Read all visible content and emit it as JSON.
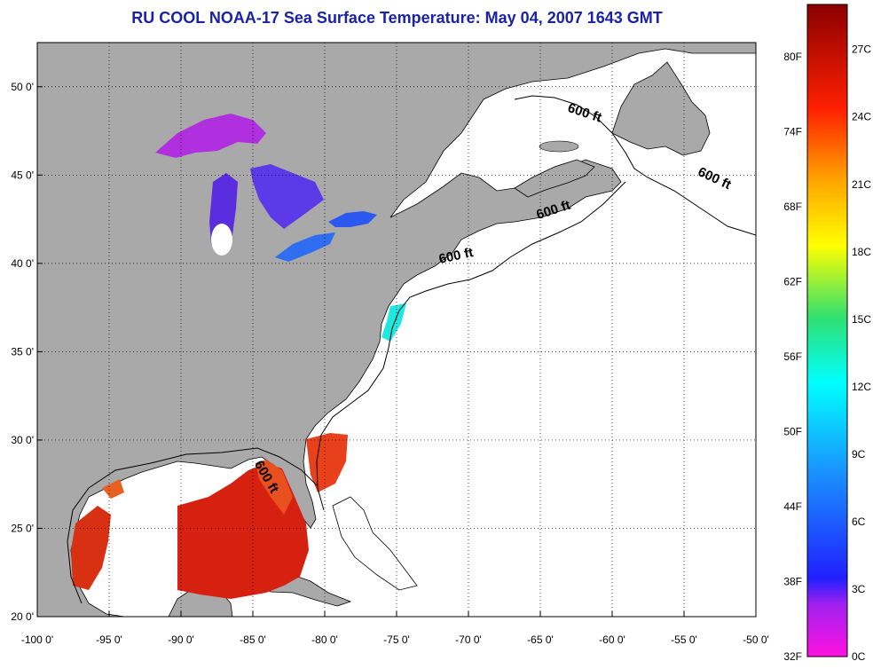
{
  "title": "RU COOL  NOAA-17  Sea Surface Temperature:  May 04, 2007 1643 GMT",
  "map": {
    "lon_range": [
      -100,
      -50
    ],
    "lat_range": [
      20,
      52.5
    ],
    "lon_ticks": [
      {
        "value": -100,
        "label": "-100 0'"
      },
      {
        "value": -95,
        "label": "-95 0'"
      },
      {
        "value": -90,
        "label": "-90 0'"
      },
      {
        "value": -85,
        "label": "-85 0'"
      },
      {
        "value": -80,
        "label": "-80 0'"
      },
      {
        "value": -75,
        "label": "-75 0'"
      },
      {
        "value": -70,
        "label": "-70 0'"
      },
      {
        "value": -65,
        "label": "-65 0'"
      },
      {
        "value": -60,
        "label": "-60 0'"
      },
      {
        "value": -55,
        "label": "-55 0'"
      },
      {
        "value": -50,
        "label": "-50 0'"
      }
    ],
    "lat_ticks": [
      {
        "value": 20,
        "label": "20 0'"
      },
      {
        "value": 25,
        "label": "25 0'"
      },
      {
        "value": 30,
        "label": "30 0'"
      },
      {
        "value": 35,
        "label": "35 0'"
      },
      {
        "value": 40,
        "label": "40 0'"
      },
      {
        "value": 45,
        "label": "45 0'"
      },
      {
        "value": 50,
        "label": "50 0'"
      }
    ],
    "grid": "dotted",
    "contour_labels": [
      {
        "text": "600 ft",
        "lon": -62,
        "lat": 48.3,
        "angle": 18
      },
      {
        "text": "600 ft",
        "lon": -53,
        "lat": 44.6,
        "angle": 25
      },
      {
        "text": "600 ft",
        "lon": -64,
        "lat": 42.8,
        "angle": -18
      },
      {
        "text": "600 ft",
        "lon": -70.8,
        "lat": 40.2,
        "angle": -12
      },
      {
        "text": "600 ft",
        "lon": -84.3,
        "lat": 27.8,
        "angle": 60
      }
    ],
    "colors": {
      "land": "#a9a9a9",
      "ocean_nodata": "#ffffff",
      "coastline": "#000000"
    }
  },
  "colorbar": {
    "fahrenheit_labels": [
      "32F",
      "38F",
      "44F",
      "50F",
      "56F",
      "62F",
      "68F",
      "74F",
      "80F"
    ],
    "celsius_labels": [
      "0C",
      "3C",
      "6C",
      "9C",
      "12C",
      "15C",
      "18C",
      "21C",
      "24C",
      "27C"
    ],
    "range_c": [
      0,
      29
    ]
  }
}
